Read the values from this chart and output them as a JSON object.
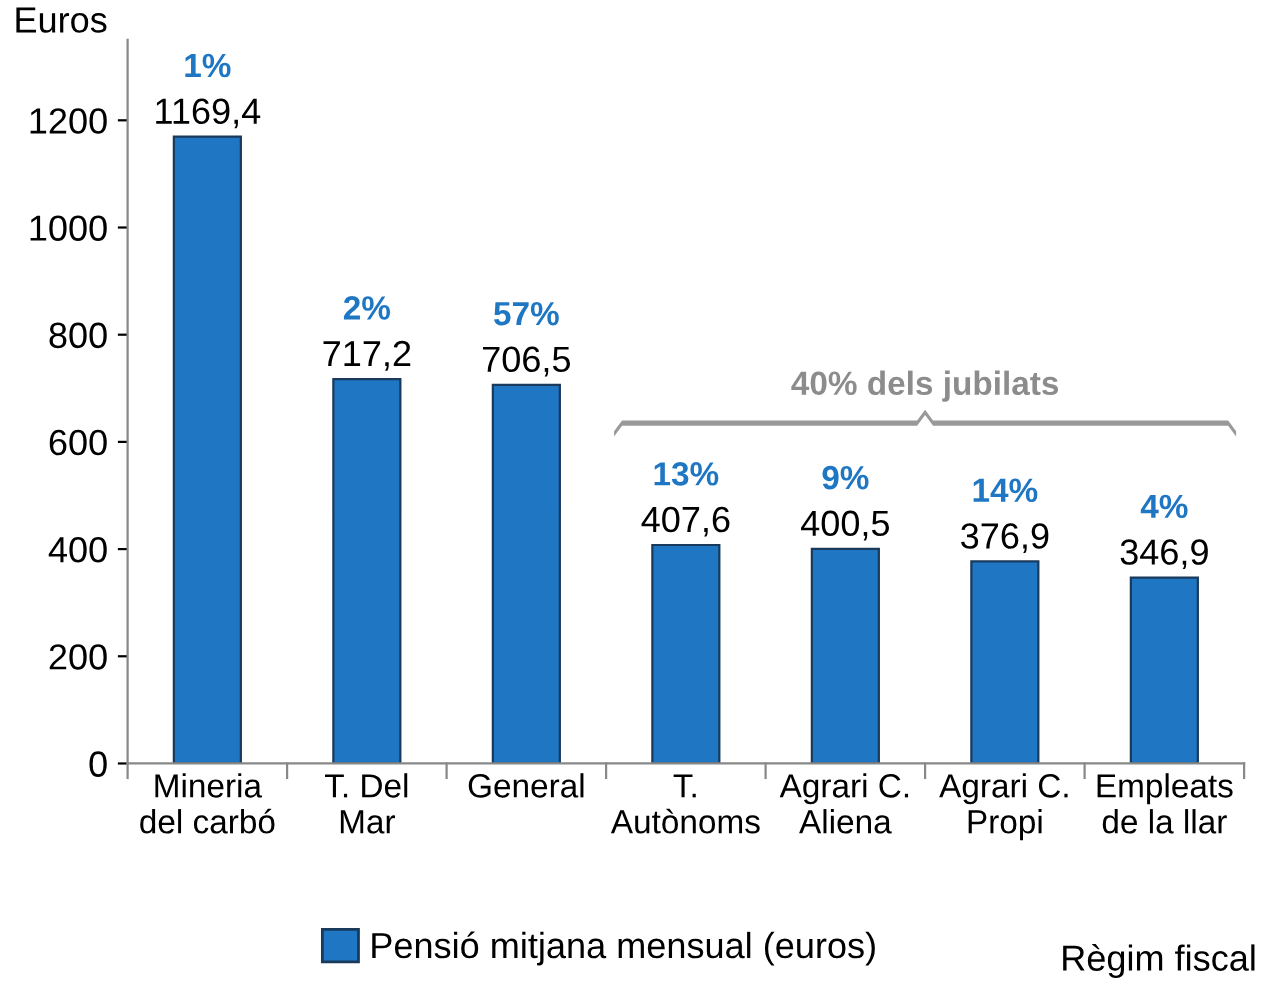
{
  "chart_data": {
    "type": "bar",
    "ylabel": "Euros",
    "xlabel": "Règim fiscal",
    "categories": [
      "Mineria\ndel carbó",
      "T. Del\nMar",
      "General",
      "T.\nAutònoms",
      "Agrari C.\nAliena",
      "Agrari C.\nPropi",
      "Empleats\nde la llar"
    ],
    "series": [
      {
        "name": "Pensió mitjana mensual (euros)",
        "color": "#1f77c4",
        "values": [
          1169.4,
          717.2,
          706.5,
          407.6,
          400.5,
          376.9,
          346.9
        ],
        "value_labels": [
          "1169,4",
          "717,2",
          "706,5",
          "407,6",
          "400,5",
          "376,9",
          "346,9"
        ]
      }
    ],
    "ylim": [
      0,
      1350
    ],
    "yticks": [
      0,
      200,
      400,
      600,
      800,
      1000,
      1200
    ],
    "grid": false,
    "legend": "bottom",
    "annotations": [
      "1%",
      "2%",
      "57%",
      "13%",
      "9%",
      "14%",
      "4%",
      "40% dels jubilats"
    ]
  }
}
